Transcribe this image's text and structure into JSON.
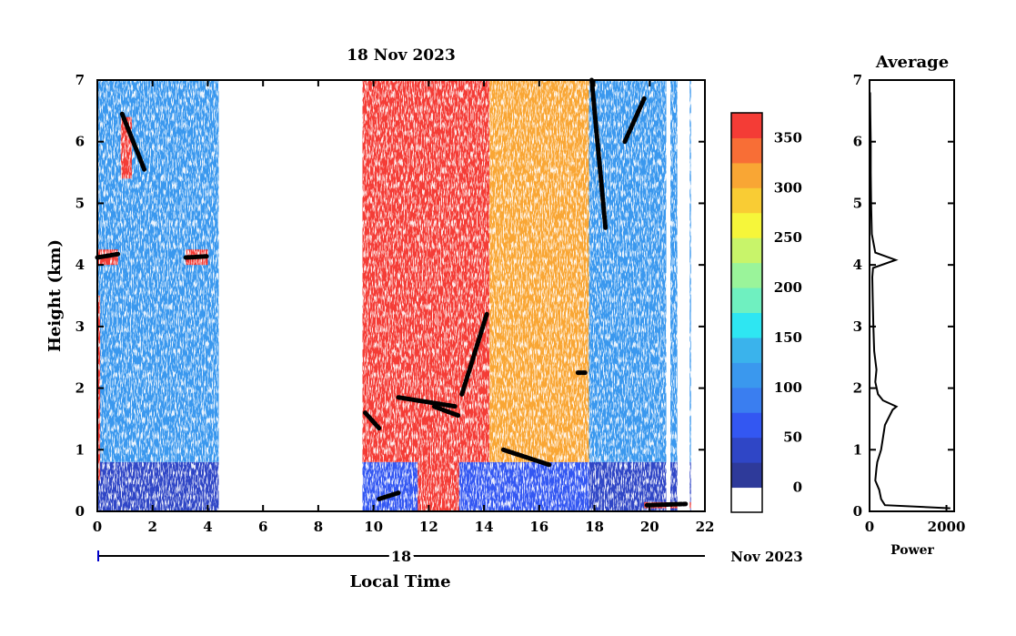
{
  "chart_data": [
    {
      "type": "heatmap",
      "title": "18 Nov 2023",
      "xlabel": "Local Time",
      "ylabel": "Height (km)",
      "xlim": [
        0,
        22
      ],
      "ylim": [
        0,
        7
      ],
      "x_ticks": [
        "0",
        "2",
        "4",
        "6",
        "8",
        "10",
        "12",
        "14",
        "16",
        "18",
        "20",
        "22"
      ],
      "y_ticks": [
        "0",
        "1",
        "2",
        "3",
        "4",
        "5",
        "6",
        "7"
      ],
      "date_axis": {
        "day_label": "18",
        "suffix_label": "Nov 2023"
      },
      "colorbar": {
        "ticks": [
          "0",
          "50",
          "100",
          "150",
          "200",
          "250",
          "300",
          "350"
        ],
        "min": -25,
        "max": 375,
        "colors": [
          "#ffffff",
          "#2e3a9a",
          "#2f46c6",
          "#3357f2",
          "#3a7ef0",
          "#3a98ee",
          "#3ab3ec",
          "#2ee6f2",
          "#6ff0c0",
          "#9af49a",
          "#c8f46a",
          "#f6f63a",
          "#f9cc34",
          "#f9a634",
          "#f86e36",
          "#f43c36"
        ]
      },
      "data_gaps": [
        [
          4.4,
          9.6
        ],
        [
          20.6,
          20.75
        ],
        [
          21.0,
          21.45
        ]
      ],
      "regions": [
        {
          "x": [
            0.0,
            4.4
          ],
          "y": [
            0.0,
            0.8
          ],
          "value": 40
        },
        {
          "x": [
            0.0,
            4.4
          ],
          "y": [
            0.8,
            7.0
          ],
          "value": 110
        },
        {
          "x": [
            9.6,
            14.2
          ],
          "y": [
            0.0,
            0.8
          ],
          "value": 60
        },
        {
          "x": [
            9.6,
            14.2
          ],
          "y": [
            0.8,
            7.0
          ],
          "value": 360
        },
        {
          "x": [
            11.6,
            13.1
          ],
          "y": [
            0.0,
            1.7
          ],
          "value": 370
        },
        {
          "x": [
            14.2,
            17.8
          ],
          "y": [
            0.0,
            0.8
          ],
          "value": 60
        },
        {
          "x": [
            14.2,
            17.8
          ],
          "y": [
            0.8,
            7.0
          ],
          "value": 320
        },
        {
          "x": [
            17.8,
            21.5
          ],
          "y": [
            0.0,
            0.8
          ],
          "value": 40
        },
        {
          "x": [
            17.8,
            21.5
          ],
          "y": [
            0.8,
            7.0
          ],
          "value": 110
        },
        {
          "x": [
            0.0,
            0.1
          ],
          "y": [
            0.5,
            3.5
          ],
          "value": 360
        },
        {
          "x": [
            0.85,
            1.25
          ],
          "y": [
            5.4,
            6.4
          ],
          "value": 360
        },
        {
          "x": [
            0.0,
            0.75
          ],
          "y": [
            4.0,
            4.25
          ],
          "value": 360
        },
        {
          "x": [
            3.2,
            4.0
          ],
          "y": [
            4.0,
            4.25
          ],
          "value": 360
        },
        {
          "x": [
            19.8,
            21.5
          ],
          "y": [
            0.05,
            0.15
          ],
          "value": 360
        }
      ],
      "layers": [
        {
          "x": [
            0.0,
            0.8
          ],
          "y": [
            4.12,
            4.18
          ]
        },
        {
          "x": [
            0.9,
            1.7
          ],
          "y": [
            6.45,
            5.55
          ]
        },
        {
          "x": [
            3.2,
            4.0
          ],
          "y": [
            4.12,
            4.14
          ]
        },
        {
          "x": [
            9.7,
            10.2
          ],
          "y": [
            1.6,
            1.35
          ]
        },
        {
          "x": [
            10.2,
            10.9
          ],
          "y": [
            0.2,
            0.3
          ]
        },
        {
          "x": [
            10.9,
            13.0
          ],
          "y": [
            1.85,
            1.7
          ]
        },
        {
          "x": [
            12.2,
            13.1
          ],
          "y": [
            1.7,
            1.55
          ]
        },
        {
          "x": [
            13.2,
            14.1
          ],
          "y": [
            1.9,
            3.2
          ]
        },
        {
          "x": [
            14.7,
            16.4
          ],
          "y": [
            1.0,
            0.75
          ]
        },
        {
          "x": [
            17.4,
            17.7
          ],
          "y": [
            2.25,
            2.25
          ]
        },
        {
          "x": [
            17.9,
            18.4
          ],
          "y": [
            7.0,
            4.6
          ]
        },
        {
          "x": [
            19.1,
            19.8
          ],
          "y": [
            6.0,
            6.7
          ]
        },
        {
          "x": [
            19.9,
            21.3
          ],
          "y": [
            0.1,
            0.12
          ]
        }
      ]
    },
    {
      "type": "line",
      "title": "Average",
      "xlabel": "Power",
      "ylabel": "",
      "xlim": [
        0,
        2200
      ],
      "ylim": [
        0,
        7
      ],
      "x_ticks": [
        "0",
        "2000"
      ],
      "y_ticks": [
        "0",
        "1",
        "2",
        "3",
        "4",
        "5",
        "6",
        "7"
      ],
      "series": [
        {
          "points": [
            [
              2100,
              0.05
            ],
            [
              400,
              0.1
            ],
            [
              300,
              0.2
            ],
            [
              250,
              0.35
            ],
            [
              150,
              0.5
            ],
            [
              180,
              0.7
            ],
            [
              200,
              0.8
            ],
            [
              300,
              1.0
            ],
            [
              350,
              1.2
            ],
            [
              400,
              1.4
            ],
            [
              600,
              1.65
            ],
            [
              700,
              1.7
            ],
            [
              350,
              1.8
            ],
            [
              220,
              1.9
            ],
            [
              150,
              2.1
            ],
            [
              180,
              2.3
            ],
            [
              120,
              2.6
            ],
            [
              100,
              3.0
            ],
            [
              80,
              3.5
            ],
            [
              70,
              3.8
            ],
            [
              90,
              3.95
            ],
            [
              680,
              4.08
            ],
            [
              150,
              4.2
            ],
            [
              60,
              4.5
            ],
            [
              40,
              5.0
            ],
            [
              30,
              5.5
            ],
            [
              30,
              6.0
            ],
            [
              20,
              6.5
            ],
            [
              15,
              6.8
            ]
          ]
        }
      ]
    }
  ]
}
